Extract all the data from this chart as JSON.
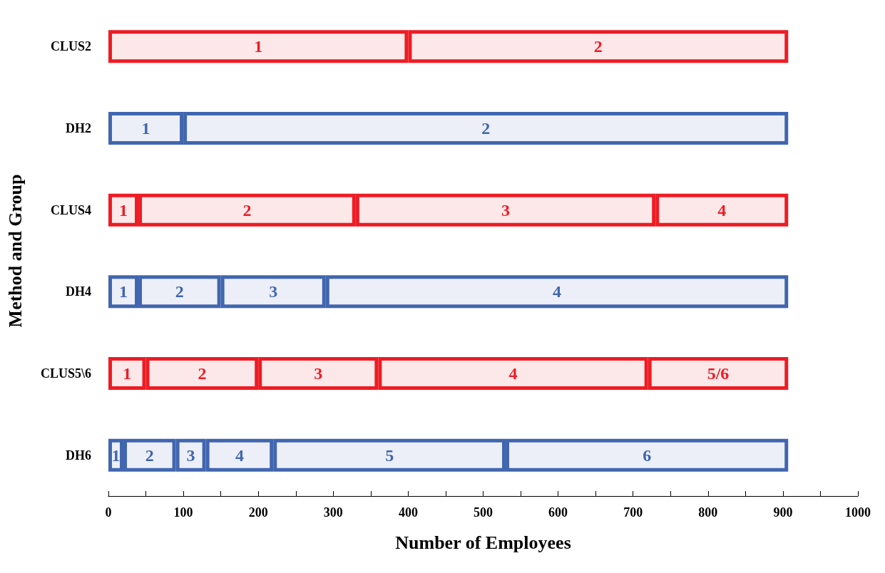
{
  "chart_data": {
    "type": "bar",
    "orientation": "horizontal",
    "stacked": true,
    "xlabel": "Number of Employees",
    "ylabel": "Method and Group",
    "categories": [
      "CLUS2",
      "DH2",
      "CLUS4",
      "DH4",
      "CLUS5\\6",
      "DH6"
    ],
    "series": [
      {
        "name": "1",
        "values": [
          400,
          100,
          40,
          40,
          50,
          20
        ],
        "colors": [
          "#ed1c24",
          "#4166b0",
          "#ed1c24",
          "#4166b0",
          "#ed1c24",
          "#4166b0"
        ]
      },
      {
        "name": "2",
        "values": [
          507,
          807,
          290,
          110,
          150,
          70
        ],
        "colors": [
          "#ed1c24",
          "#4166b0",
          "#ed1c24",
          "#4166b0",
          "#ed1c24",
          "#4166b0"
        ]
      },
      {
        "name": "3",
        "values": [
          null,
          null,
          400,
          140,
          160,
          40
        ],
        "colors": [
          "#ed1c24",
          "#4166b0",
          "#ed1c24",
          "#4166b0",
          "#ed1c24",
          "#4166b0"
        ]
      },
      {
        "name": "4",
        "values": [
          null,
          null,
          177,
          617,
          360,
          90
        ],
        "colors": [
          "#ed1c24",
          "#4166b0",
          "#ed1c24",
          "#4166b0",
          "#ed1c24",
          "#4166b0"
        ]
      },
      {
        "name": "5/6",
        "values": [
          null,
          null,
          null,
          null,
          187,
          null
        ],
        "colors": [
          "#ed1c24",
          "#4166b0",
          "#ed1c24",
          "#4166b0",
          "#ed1c24",
          "#4166b0"
        ]
      },
      {
        "name": "5",
        "values": [
          null,
          null,
          null,
          null,
          null,
          310
        ],
        "colors": [
          "#ed1c24",
          "#4166b0",
          "#ed1c24",
          "#4166b0",
          "#ed1c24",
          "#4166b0"
        ]
      },
      {
        "name": "6",
        "values": [
          null,
          null,
          null,
          null,
          null,
          377
        ],
        "colors": [
          "#ed1c24",
          "#4166b0",
          "#ed1c24",
          "#4166b0",
          "#ed1c24",
          "#4166b0"
        ]
      }
    ],
    "xlim": [
      0,
      1000
    ],
    "xticks": [
      0,
      {
        "value": 50,
        "label": null
      },
      100,
      {
        "value": 150,
        "label": null
      },
      200,
      {
        "value": 250,
        "label": null
      },
      300,
      {
        "value": 350,
        "label": null
      },
      400,
      {
        "value": 450,
        "label": null
      },
      500,
      {
        "value": 550,
        "label": null
      },
      600,
      {
        "value": 650,
        "label": null
      },
      700,
      {
        "value": 750,
        "label": null
      },
      800,
      {
        "value": 850,
        "label": null
      },
      900,
      {
        "value": 950,
        "label": null
      },
      1000
    ],
    "grid": false,
    "legend": false
  }
}
